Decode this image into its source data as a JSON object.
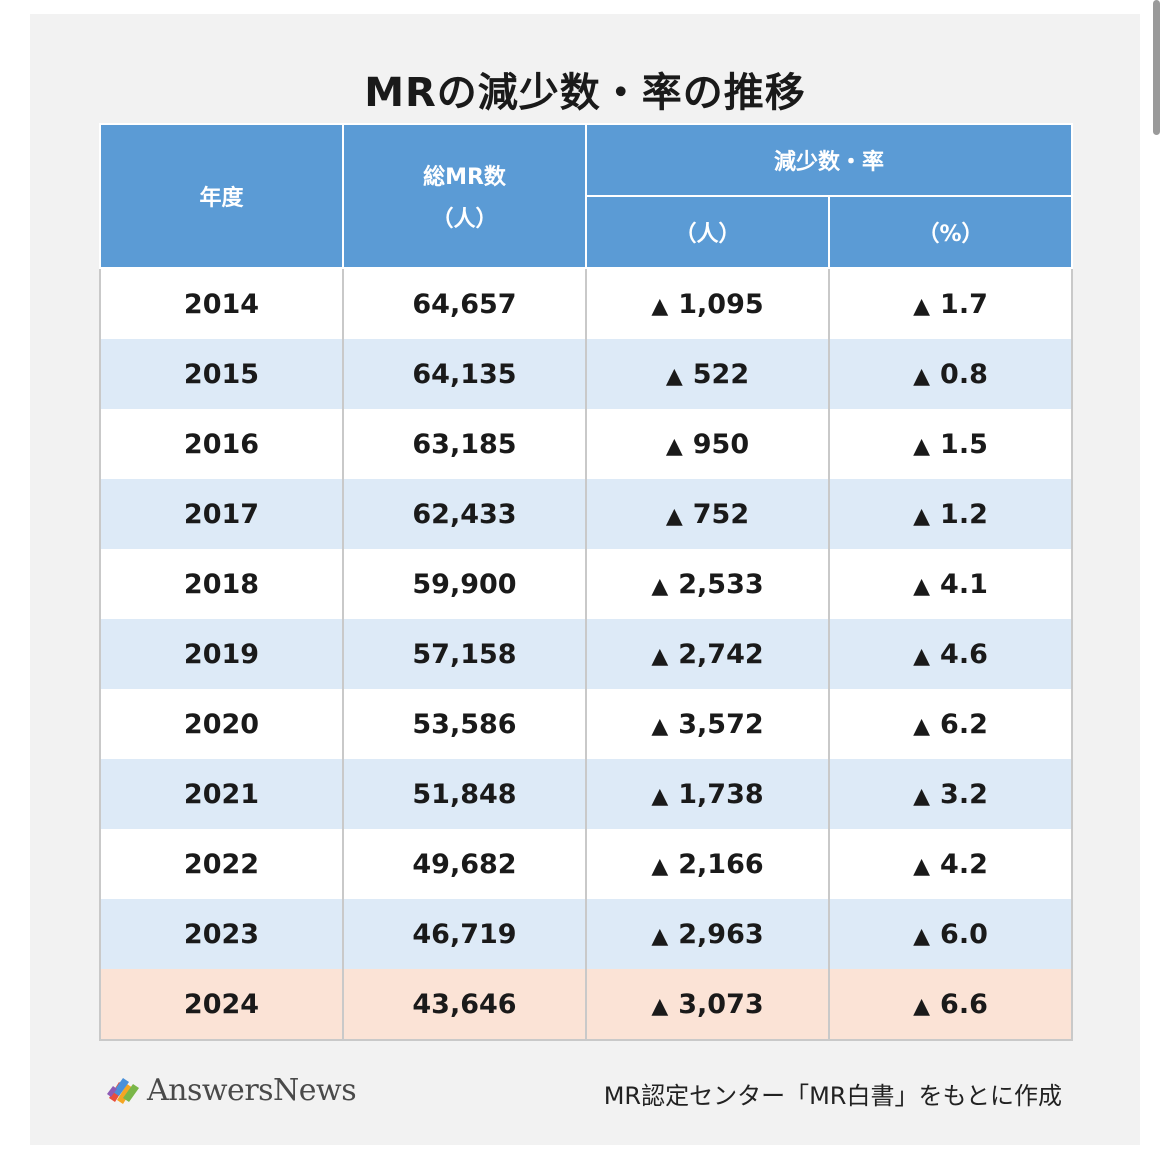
{
  "title": "MRの減少数・率の推移",
  "table": {
    "headers": {
      "year": "年度",
      "total_line1": "総MR数",
      "total_line2": "（人）",
      "decrease_group": "減少数・率",
      "decrease_people": "（人）",
      "decrease_percent": "（%）"
    },
    "rows": [
      {
        "year": "2014",
        "total": "64,657",
        "decrease": "1,095",
        "rate": "1.7"
      },
      {
        "year": "2015",
        "total": "64,135",
        "decrease": "522",
        "rate": "0.8"
      },
      {
        "year": "2016",
        "total": "63,185",
        "decrease": "950",
        "rate": "1.5"
      },
      {
        "year": "2017",
        "total": "62,433",
        "decrease": "752",
        "rate": "1.2"
      },
      {
        "year": "2018",
        "total": "59,900",
        "decrease": "2,533",
        "rate": "4.1"
      },
      {
        "year": "2019",
        "total": "57,158",
        "decrease": "2,742",
        "rate": "4.6"
      },
      {
        "year": "2020",
        "total": "53,586",
        "decrease": "3,572",
        "rate": "6.2"
      },
      {
        "year": "2021",
        "total": "51,848",
        "decrease": "1,738",
        "rate": "3.2"
      },
      {
        "year": "2022",
        "total": "49,682",
        "decrease": "2,166",
        "rate": "4.2"
      },
      {
        "year": "2023",
        "total": "46,719",
        "decrease": "2,963",
        "rate": "6.0"
      },
      {
        "year": "2024",
        "total": "43,646",
        "decrease": "3,073",
        "rate": "6.6"
      }
    ],
    "decrease_marker": "▲",
    "highlight_year": "2024"
  },
  "footer": {
    "logo_text": "AnswersNews",
    "source": "MR認定センター「MR白書」をもとに作成"
  },
  "colors": {
    "header_bg": "#5b9bd5",
    "row_stripe": "#ddeaf7",
    "row_highlight": "#fbe3d6",
    "card_bg": "#f2f2f2"
  }
}
